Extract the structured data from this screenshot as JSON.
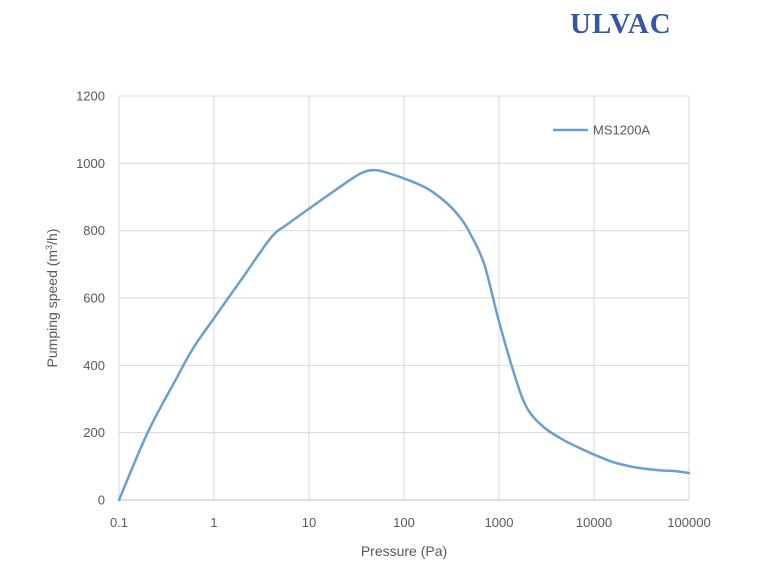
{
  "logo": {
    "text": "ULVAC",
    "color": "#3556a5"
  },
  "chart_data": {
    "type": "line",
    "xscale": "log",
    "xlabel": "Pressure (Pa)",
    "ylabel_prefix": "Pumping speed (m",
    "ylabel_sup": "3",
    "ylabel_suffix": "/h)",
    "xlim": [
      0.1,
      100000
    ],
    "ylim": [
      0,
      1200
    ],
    "x_ticks": [
      "0.1",
      "1",
      "10",
      "100",
      "1000",
      "10000",
      "100000"
    ],
    "y_ticks": [
      "0",
      "200",
      "400",
      "600",
      "800",
      "1000",
      "1200"
    ],
    "grid": true,
    "legend_position": "top-right",
    "series": [
      {
        "name": "MS1200A",
        "color": "#6b9fd1",
        "x": [
          0.1,
          0.2,
          0.4,
          0.6,
          1,
          2,
          4,
          6,
          10,
          20,
          35,
          50,
          70,
          100,
          150,
          200,
          300,
          400,
          500,
          700,
          1000,
          1500,
          2000,
          3000,
          5000,
          7000,
          10000,
          15000,
          20000,
          30000,
          50000,
          70000,
          100000
        ],
        "y": [
          0,
          200,
          360,
          450,
          540,
          660,
          780,
          820,
          865,
          925,
          970,
          980,
          970,
          955,
          935,
          915,
          875,
          835,
          790,
          700,
          530,
          360,
          270,
          215,
          175,
          155,
          135,
          115,
          105,
          95,
          88,
          86,
          80
        ]
      }
    ]
  }
}
